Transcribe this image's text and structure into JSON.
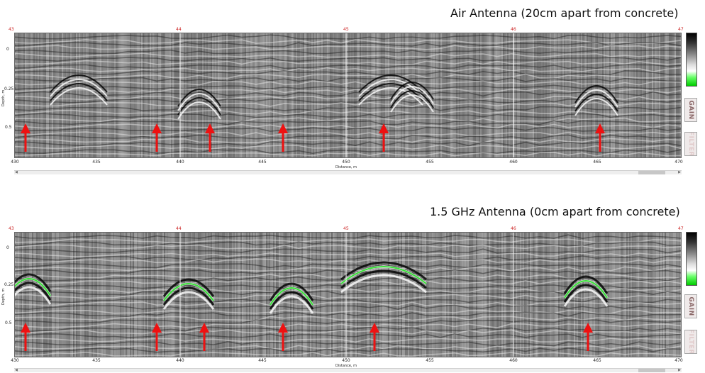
{
  "panels": [
    {
      "id": "top",
      "title": "Air Antenna (20cm apart from concrete)",
      "markers": [
        "43",
        "44",
        "45",
        "46",
        "47"
      ],
      "distance_ticks": [
        "430",
        "435",
        "440",
        "445",
        "450",
        "455",
        "460",
        "465",
        "470"
      ],
      "depth_ticks": [
        "0",
        "0.25",
        "0.5"
      ],
      "x_axis_label": "Distance, m",
      "y_axis_label": "Depth, m",
      "arrows": 7,
      "side_buttons": {
        "gain": "GAIN",
        "filter": "FILTER"
      }
    },
    {
      "id": "bottom",
      "title": "1.5 GHz Antenna (0cm apart from concrete)",
      "markers": [
        "43",
        "44",
        "45",
        "46",
        "47"
      ],
      "distance_ticks": [
        "430",
        "435",
        "440",
        "445",
        "450",
        "455",
        "460",
        "465",
        "470"
      ],
      "depth_ticks": [
        "0",
        "0.25",
        "0.5"
      ],
      "x_axis_label": "Distance, m",
      "y_axis_label": "Depth, m",
      "arrows": 7,
      "side_buttons": {
        "gain": "GAIN",
        "filter": "FILTER"
      }
    }
  ],
  "colors": {
    "arrow": "#ee1111",
    "highlight": "#22e022",
    "marker_text": "#cc2222"
  }
}
